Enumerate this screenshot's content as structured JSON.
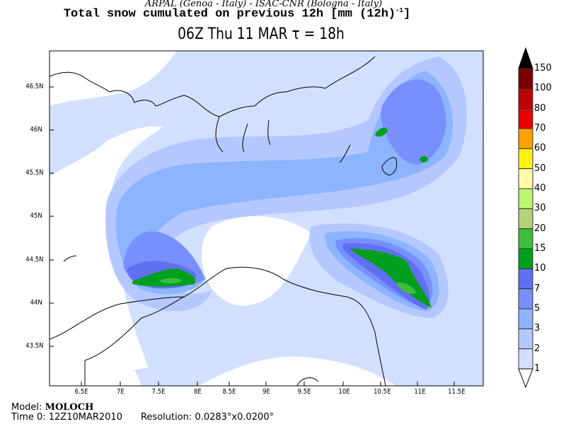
{
  "header": {
    "credits": "ARPAL (Genoa - Italy)  -  ISAC-CNR (Bologna - Italy)",
    "title": "Total snow cumulated on previous 12h [mm (12h)",
    "title_exp": "-1",
    "title_end": "]",
    "valid_time": "06Z Thu 11 MAR  τ = 18h"
  },
  "map": {
    "lat_labels": [
      "46.5N",
      "46N",
      "45.5N",
      "45N",
      "44.5N",
      "44N",
      "43.5N"
    ],
    "lon_labels": [
      "6.5E",
      "7E",
      "7.5E",
      "8E",
      "8.5E",
      "9E",
      "9.5E",
      "10E",
      "10.5E",
      "11E",
      "11.5E"
    ]
  },
  "colorbar": {
    "labels": [
      "150",
      "100",
      "80",
      "70",
      "60",
      "50",
      "40",
      "30",
      "20",
      "15",
      "10",
      "7",
      "5",
      "3",
      "2",
      "1"
    ],
    "colors": [
      "#7a0000",
      "#c00000",
      "#e60000",
      "#ffa000",
      "#fff014",
      "#fffaaa",
      "#bef56e",
      "#b4d278",
      "#3cbe3c",
      "#00a01e",
      "#6070f0",
      "#7890ff",
      "#8cb4ff",
      "#b4c8ff",
      "#d2e0ff"
    ],
    "over_color": "#000000",
    "under_color": "#ffffff"
  },
  "footer": {
    "model_label": "Model:",
    "model": "MOLOCH",
    "time0_label": "Time 0:",
    "time0": "12Z10MAR2010",
    "resolution_label": "Resolution:",
    "resolution": "0.0283°x0.0200°"
  }
}
